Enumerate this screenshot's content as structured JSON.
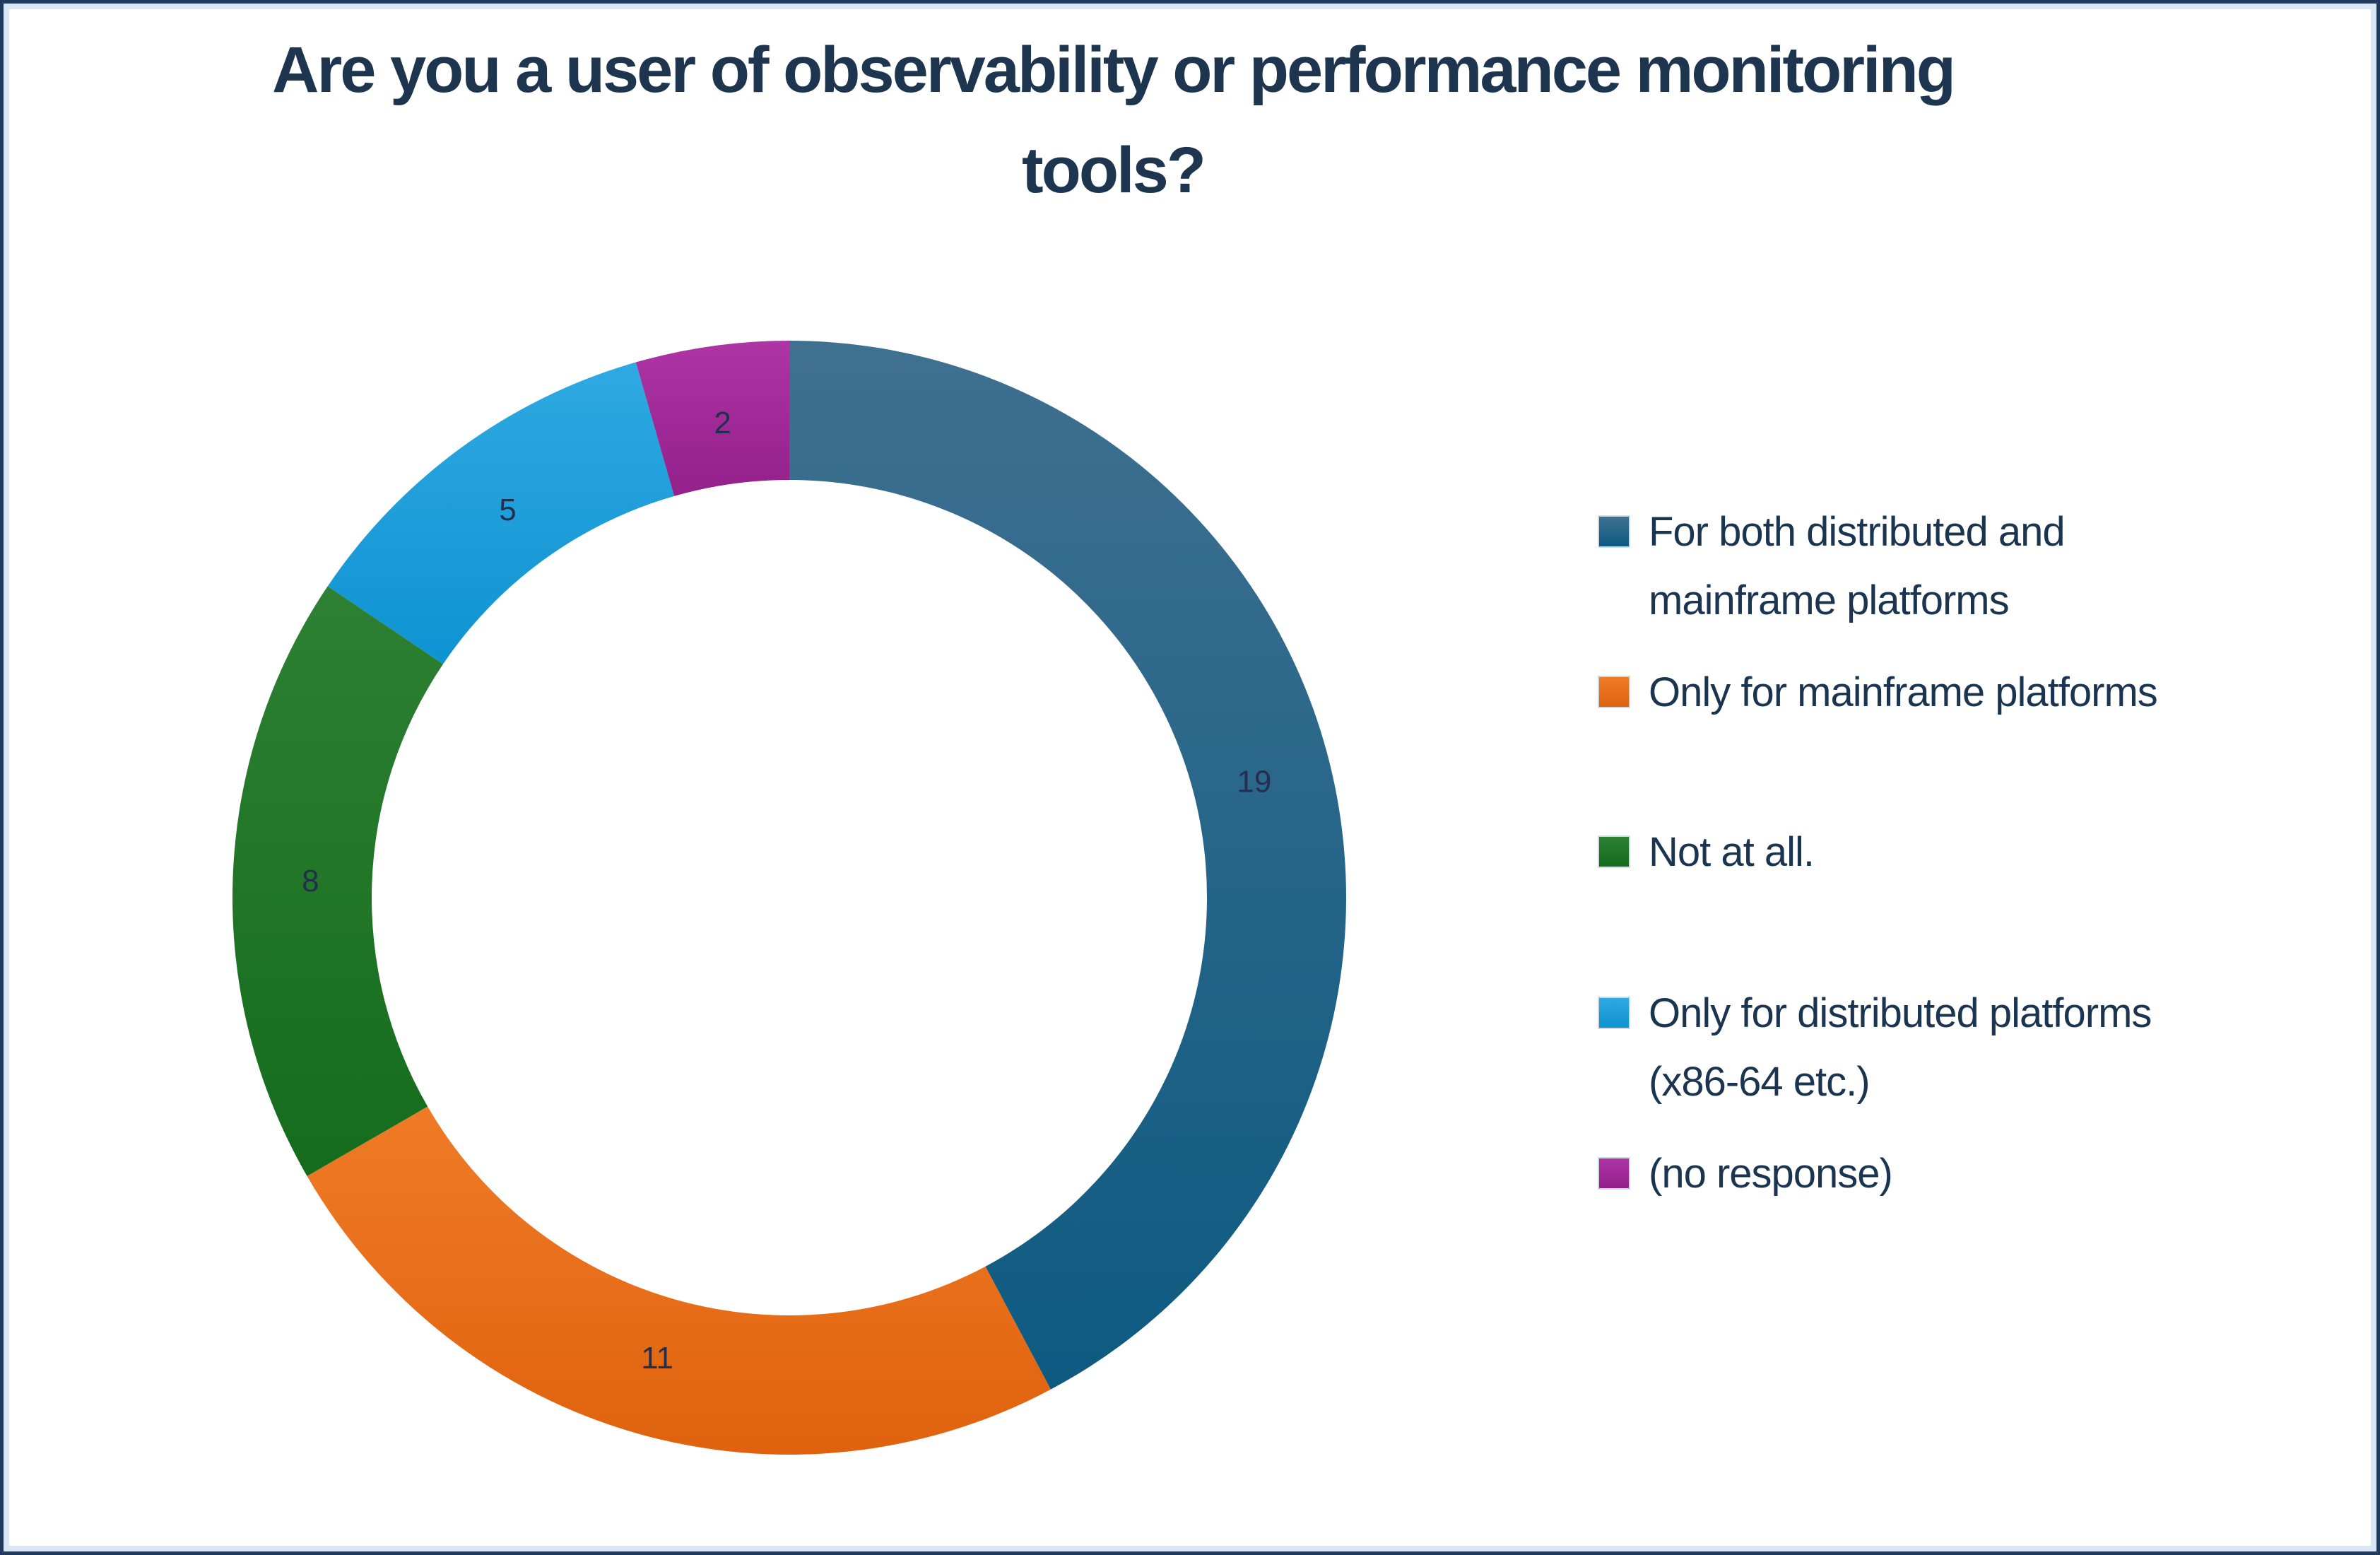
{
  "title": {
    "lines": [
      "Are you a user of observability or performance monitoring",
      "tools?"
    ]
  },
  "chart_data": {
    "type": "pie",
    "subtype": "donut",
    "title": "Are you a user of observability or performance monitoring tools?",
    "total": 45,
    "start_angle_deg": 0,
    "direction": "clockwise",
    "inner_radius_ratio": 0.75,
    "grid": false,
    "legend_position": "right",
    "series": [
      {
        "label": "For both distributed and mainframe platforms",
        "value": 19,
        "color_top": "#3f7090",
        "color_bottom": "#0d5a81"
      },
      {
        "label": "Only for  mainframe platforms",
        "value": 11,
        "color_top": "#ef7b27",
        "color_bottom": "#e0620e"
      },
      {
        "label": "Not at all.",
        "value": 8,
        "color_top": "#2e8033",
        "color_bottom": "#146c1c"
      },
      {
        "label": "Only for distributed platforms (x86-64 etc.)",
        "value": 5,
        "color_top": "#2fa9e1",
        "color_bottom": "#0e93d2"
      },
      {
        "label": "(no response)",
        "value": 2,
        "color_top": "#ad35a4",
        "color_bottom": "#93208b"
      }
    ]
  },
  "legend": {
    "items": [
      {
        "series_index": 0,
        "lines": [
          "For both distributed and",
          "mainframe platforms"
        ]
      },
      {
        "series_index": 1,
        "lines": [
          "Only for  mainframe platforms"
        ]
      },
      {
        "series_index": 2,
        "lines": [
          "Not at all."
        ]
      },
      {
        "series_index": 3,
        "lines": [
          "Only for distributed platforms",
          "(x86-64 etc.)"
        ]
      },
      {
        "series_index": 4,
        "lines": [
          "(no response)"
        ]
      }
    ]
  },
  "colors": {
    "title_text": "#1e3550",
    "legend_text": "#1b3450",
    "slice_label_text": "#22304e",
    "frame_border_dark": "#1e3a5f",
    "frame_border_light": "#d9e6f6",
    "background": "#ffffff"
  }
}
